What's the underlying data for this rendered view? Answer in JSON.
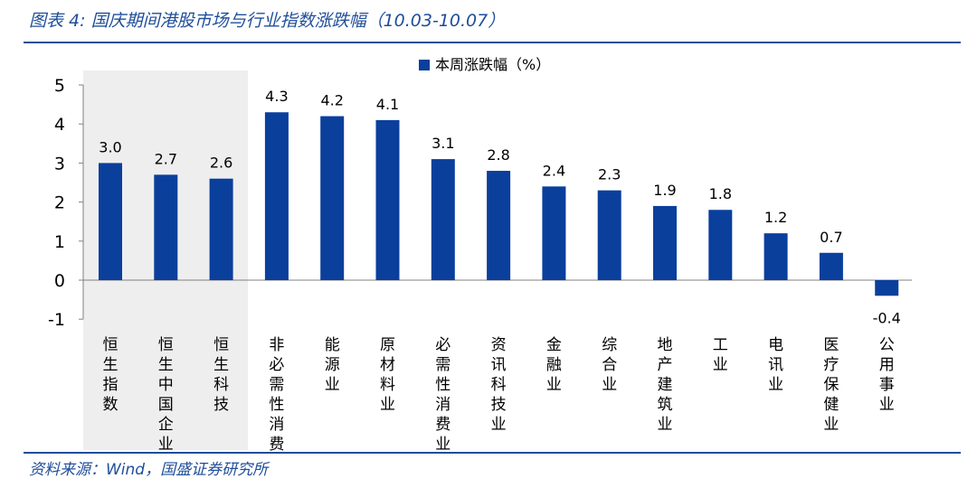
{
  "figure": {
    "title": "图表 4:  国庆期间港股市场与行业指数涨跌幅（10.03-10.07）",
    "source": "资料来源：Wind，国盛证券研究所"
  },
  "colors": {
    "bar": "#0a3f9c",
    "accent": "#1f4e99",
    "highlight_band": "#eeeeee",
    "axis": "#808080"
  },
  "chart_data": {
    "type": "bar",
    "title": "",
    "xlabel": "",
    "ylabel": "",
    "legend": [
      "本周涨跌幅（%）"
    ],
    "legend_position": "top-center",
    "ylim": [
      -1,
      5
    ],
    "yticks": [
      "5",
      "4",
      "3",
      "2",
      "1",
      "0",
      "-1"
    ],
    "categories": [
      "恒生指数",
      "恒生中国企业",
      "恒生科技",
      "非必需性消费",
      "能源业",
      "原材料业",
      "必需性消费业",
      "资讯科技业",
      "金融业",
      "综合业",
      "地产建筑业",
      "工业",
      "电讯业",
      "医疗保健业",
      "公用事业"
    ],
    "values": [
      3.0,
      2.7,
      2.6,
      4.3,
      4.2,
      4.1,
      3.1,
      2.8,
      2.4,
      2.3,
      1.9,
      1.8,
      1.2,
      0.7,
      -0.4
    ],
    "value_labels": [
      "3.0",
      "2.7",
      "2.6",
      "4.3",
      "4.2",
      "4.1",
      "3.1",
      "2.8",
      "2.4",
      "2.3",
      "1.9",
      "1.8",
      "1.2",
      "0.7",
      "-0.4"
    ],
    "highlighted_categories": [
      "恒生指数",
      "恒生中国企业",
      "恒生科技"
    ]
  }
}
